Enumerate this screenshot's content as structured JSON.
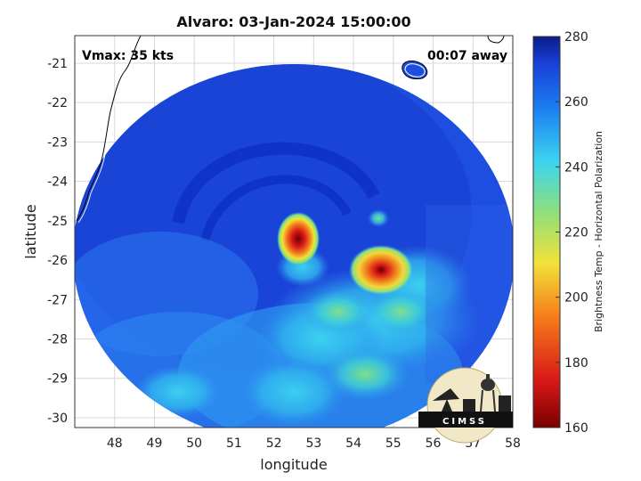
{
  "title": "Alvaro: 03-Jan-2024 15:00:00",
  "annotations": {
    "vmax": "Vmax: 35 kts",
    "time_away": "00:07 away"
  },
  "axes": {
    "xlabel": "longitude",
    "ylabel": "latitude",
    "xlim": [
      47,
      58
    ],
    "ylim": [
      -30.25,
      -20.3
    ],
    "xticks": [
      "48",
      "49",
      "50",
      "51",
      "52",
      "53",
      "54",
      "55",
      "56",
      "57",
      "58"
    ],
    "yticks": [
      "-21",
      "-22",
      "-23",
      "-24",
      "-25",
      "-26",
      "-27",
      "-28",
      "-29",
      "-30"
    ],
    "grid": true
  },
  "colorbar": {
    "label": "Brightness Temp - Horizontal Polarization",
    "range": [
      160,
      280
    ],
    "ticks": [
      "280",
      "260",
      "240",
      "220",
      "200",
      "180",
      "160"
    ],
    "colormap": "jet"
  },
  "colors": {
    "background_blue": "#1e4ee0",
    "deep_blue": "#0a2fc8",
    "cyan": "#3cc6f0",
    "green": "#7fe07a",
    "yellow": "#f5e23a",
    "orange": "#f08020",
    "red": "#d81818",
    "dark_red": "#7a0000"
  },
  "features": {
    "storm_center": {
      "lon": 52.5,
      "lat": -25.2
    },
    "convection_east": {
      "lon": 54.5,
      "lat": -26.2
    }
  },
  "logo": {
    "text": "CIMSS",
    "icon": "cimss-logo-icon"
  }
}
